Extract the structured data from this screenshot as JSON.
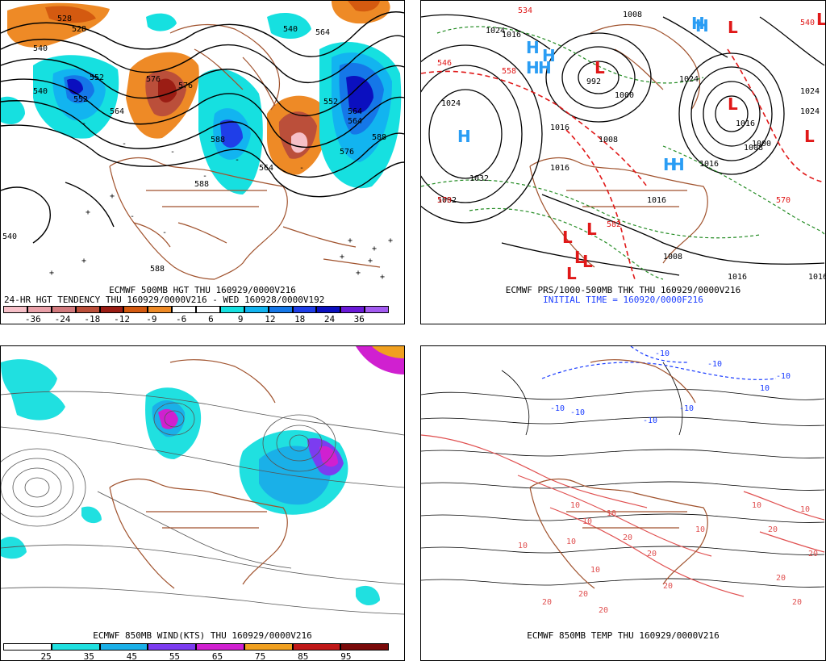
{
  "panels": {
    "hgt500": {
      "title_line1": "ECMWF 500MB HGT THU 160929/0000V216",
      "title_line2": "24-HR HGT TENDENCY THU 160929/0000V216 - WED 160928/0000V192",
      "colorbar": {
        "ticks": [
          "-36",
          "-24",
          "-18",
          "-12",
          "-9",
          "-6",
          "6",
          "9",
          "12",
          "18",
          "24",
          "36"
        ],
        "colors": [
          "#f6c0c8",
          "#e9a0a8",
          "#d27a7e",
          "#bb4f3a",
          "#9b1d14",
          "#d45a10",
          "#ee8a26",
          "#ffffff",
          "#ffffff",
          "#16e0e0",
          "#12b4f0",
          "#1577e8",
          "#1f3ee8",
          "#0b0fbf",
          "#6a1ad8",
          "#a35bf0"
        ]
      },
      "contour_labels": [
        "528",
        "540",
        "552",
        "564",
        "576",
        "588",
        "540",
        "552",
        "564",
        "576",
        "588",
        "588",
        "540",
        "552",
        "564",
        "540",
        "564",
        "576",
        "528",
        "564",
        "588"
      ],
      "anomaly_labels": [
        "-",
        "-",
        "-",
        "-",
        "-",
        "-",
        "-",
        "-",
        "+",
        "+",
        "+",
        "+",
        "+",
        "+",
        "+",
        "+",
        "+",
        "+",
        "+"
      ]
    },
    "prs": {
      "title": "ECMWF PRS/1000-500MB THK THU 160929/0000V216",
      "subtitle": "INITIAL TIME = 160920/0000F216",
      "highs": [
        "H",
        "H",
        "H",
        "H",
        "H",
        "H",
        "H",
        "H",
        "H"
      ],
      "lows": [
        "L",
        "L",
        "L",
        "L",
        "L",
        "L",
        "L",
        "L",
        "L",
        "L"
      ],
      "isobar_labels": [
        "1032",
        "1024",
        "1016",
        "1008",
        "1000",
        "992",
        "1008",
        "1016",
        "1024",
        "1016",
        "1008",
        "1016",
        "1024",
        "1016",
        "1000",
        "1024",
        "1016",
        "1008",
        "1016",
        "1024",
        "1032",
        "1016"
      ],
      "thickness_labels": [
        "570",
        "546",
        "558",
        "534",
        "540",
        "582",
        "570"
      ]
    },
    "wind850": {
      "title": "ECMWF 850MB WIND(KTS) THU 160929/0000V216",
      "colorbar": {
        "ticks": [
          "25",
          "35",
          "45",
          "55",
          "65",
          "75",
          "85",
          "95"
        ],
        "colors": [
          "#ffffff",
          "#20e0e0",
          "#1ab0e8",
          "#7c3cf0",
          "#d020d0",
          "#f0a020",
          "#c01818",
          "#7a0a0a"
        ]
      }
    },
    "temp850": {
      "title": "ECMWF 850MB TEMP THU 160929/0000V216",
      "cold_labels": [
        "-10",
        "-10",
        "-10",
        "-10",
        "-10",
        "-10",
        "10",
        "-10"
      ],
      "warm_labels": [
        "10",
        "10",
        "10",
        "20",
        "10",
        "20",
        "20",
        "10",
        "20",
        "20",
        "10",
        "20",
        "20",
        "20",
        "20",
        "20",
        "10",
        "10",
        "10"
      ]
    }
  },
  "colors": {
    "coast": "#a0522d",
    "isobar": "#000000",
    "thickness": "#e01818",
    "dew": "#228b22",
    "high": "#2a9df4",
    "low": "#e01818",
    "cold": "#1a3cff",
    "warm": "#e05050"
  }
}
